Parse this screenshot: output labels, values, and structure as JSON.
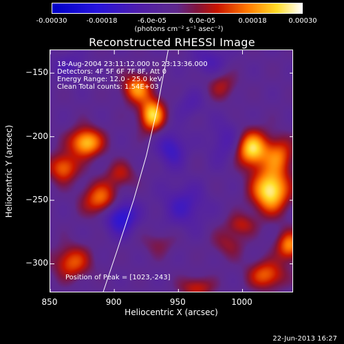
{
  "colorbar": {
    "ticks": [
      "-0.00030",
      "-0.00018",
      "-6.0e-05",
      "6.0e-05",
      "0.00018",
      "0.00030"
    ],
    "unit_label": "(photons cm⁻² s⁻¹ asec⁻²)",
    "min": -0.0003,
    "max": 0.0003
  },
  "chart_data": {
    "type": "heatmap",
    "title": "Reconstructed RHESSI Image",
    "xlabel": "Heliocentric X (arcsec)",
    "ylabel": "Heliocentric Y (arcsec)",
    "xlim": [
      850,
      1040
    ],
    "ylim": [
      -323,
      -132
    ],
    "x_ticks": [
      "850",
      "900",
      "950",
      "1000"
    ],
    "y_ticks": [
      "-150",
      "-200",
      "-250",
      "-300"
    ],
    "annotations": [
      "18-Aug-2004 23:11:12.000 to 23:13:36.000",
      "Detectors: 4F 5F 6F 7F 8F, Att 0",
      "Energy Range: 12.0 - 25.0 keV",
      "Clean     Total counts: 1.54E+03"
    ],
    "peak_label": "Position of Peak = [1023,-243]",
    "peak": [
      1023,
      -243
    ],
    "limb_points": [
      [
        891,
        -323
      ],
      [
        902,
        -290
      ],
      [
        915,
        -250
      ],
      [
        925,
        -215
      ],
      [
        933,
        -180
      ],
      [
        942,
        -132
      ]
    ],
    "sources": [
      {
        "x": 1023,
        "y": -243,
        "value": 0.0003,
        "sx": 10,
        "sy": 12
      },
      {
        "x": 1008,
        "y": -210,
        "value": 0.00028,
        "sx": 9,
        "sy": 10
      },
      {
        "x": 1030,
        "y": -215,
        "value": 0.00016,
        "sx": 8,
        "sy": 10
      },
      {
        "x": 930,
        "y": -183,
        "value": 0.00026,
        "sx": 7,
        "sy": 9
      },
      {
        "x": 918,
        "y": -162,
        "value": 0.0002,
        "sx": 8,
        "sy": 8
      },
      {
        "x": 878,
        "y": -205,
        "value": 0.00025,
        "sx": 9,
        "sy": 8
      },
      {
        "x": 860,
        "y": -225,
        "value": 0.00018,
        "sx": 8,
        "sy": 8
      },
      {
        "x": 890,
        "y": -250,
        "value": 0.00019,
        "sx": 10,
        "sy": 9
      },
      {
        "x": 867,
        "y": -300,
        "value": 0.00016,
        "sx": 10,
        "sy": 9
      },
      {
        "x": 1038,
        "y": -287,
        "value": 0.0002,
        "sx": 7,
        "sy": 8
      },
      {
        "x": 1020,
        "y": -310,
        "value": 0.00017,
        "sx": 10,
        "sy": 8
      },
      {
        "x": 990,
        "y": -285,
        "value": 8e-05,
        "sx": 9,
        "sy": 8
      },
      {
        "x": 965,
        "y": -320,
        "value": 0.00012,
        "sx": 9,
        "sy": 6
      },
      {
        "x": 985,
        "y": -160,
        "value": 9e-05,
        "sx": 8,
        "sy": 8
      },
      {
        "x": 1000,
        "y": -270,
        "value": 0.0001,
        "sx": 8,
        "sy": 6
      },
      {
        "x": 905,
        "y": -230,
        "value": 0.0001,
        "sx": 8,
        "sy": 7
      },
      {
        "x": 935,
        "y": -285,
        "value": 6e-05,
        "sx": 9,
        "sy": 7
      },
      {
        "x": 905,
        "y": -263,
        "value": -0.00018,
        "sx": 9,
        "sy": 10
      },
      {
        "x": 945,
        "y": -210,
        "value": -0.00012,
        "sx": 8,
        "sy": 10
      },
      {
        "x": 955,
        "y": -255,
        "value": -0.0001,
        "sx": 12,
        "sy": 12
      },
      {
        "x": 990,
        "y": -205,
        "value": -9e-05,
        "sx": 10,
        "sy": 12
      },
      {
        "x": 975,
        "y": -140,
        "value": -8e-05,
        "sx": 10,
        "sy": 8
      },
      {
        "x": 865,
        "y": -145,
        "value": -7e-05,
        "sx": 10,
        "sy": 8
      },
      {
        "x": 960,
        "y": -175,
        "value": -6e-05,
        "sx": 8,
        "sy": 8
      }
    ]
  },
  "footer": {
    "timestamp": "22-Jun-2013 16:27"
  }
}
